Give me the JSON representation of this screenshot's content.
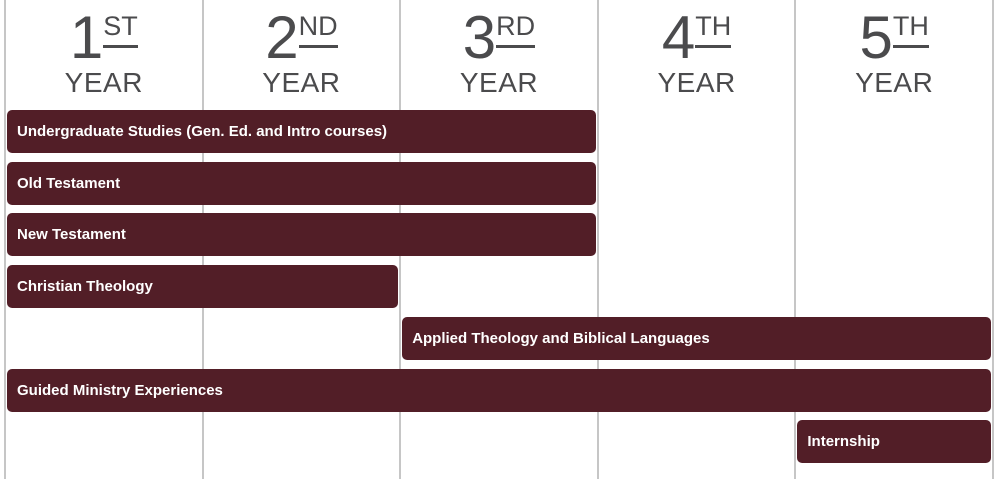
{
  "header": {
    "years": [
      {
        "number": "1",
        "suffix": "ST",
        "label": "YEAR"
      },
      {
        "number": "2",
        "suffix": "ND",
        "label": "YEAR"
      },
      {
        "number": "3",
        "suffix": "RD",
        "label": "YEAR"
      },
      {
        "number": "4",
        "suffix": "TH",
        "label": "YEAR"
      },
      {
        "number": "5",
        "suffix": "TH",
        "label": "YEAR"
      }
    ]
  },
  "chart_data": {
    "type": "bar",
    "variant": "gantt-timeline",
    "categories": [
      "1st Year",
      "2nd Year",
      "3rd Year",
      "4th Year",
      "5th Year"
    ],
    "rows": [
      {
        "label": "Undergraduate Studies (Gen. Ed. and Intro courses)",
        "start_year": 1,
        "end_year": 3
      },
      {
        "label": "Old Testament",
        "start_year": 1,
        "end_year": 3
      },
      {
        "label": "New Testament",
        "start_year": 1,
        "end_year": 3
      },
      {
        "label": "Christian Theology",
        "start_year": 1,
        "end_year": 2
      },
      {
        "label": "Applied Theology and Biblical Languages",
        "start_year": 3,
        "end_year": 5
      },
      {
        "label": "Guided Ministry Experiences",
        "start_year": 1,
        "end_year": 5
      },
      {
        "label": "Internship",
        "start_year": 5,
        "end_year": 5
      }
    ],
    "axis_range_years": [
      1,
      5
    ],
    "grid": "vertical-lines-only",
    "legend": "none",
    "colors": {
      "bar": "#521e27",
      "bar_text": "#ffffff",
      "grid_line": "#c6c6c6",
      "header_text": "#4b4b4d"
    }
  }
}
